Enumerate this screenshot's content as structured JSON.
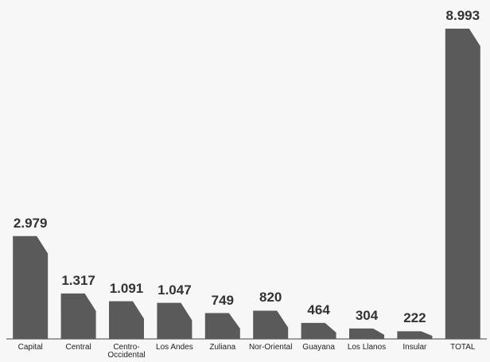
{
  "chart_data": {
    "type": "bar",
    "categories": [
      "Capital",
      "Central",
      "Centro-Occidental",
      "Los Andes",
      "Zuliana",
      "Nor-Oriental",
      "Guayana",
      "Los Llanos",
      "Insular",
      "TOTAL"
    ],
    "values": [
      2979,
      1317,
      1091,
      1047,
      749,
      820,
      464,
      304,
      222,
      8993
    ],
    "value_labels": [
      "2.979",
      "1.317",
      "1.091",
      "1.047",
      "749",
      "820",
      "464",
      "304",
      "222",
      "8.993"
    ],
    "color": "#5a5a5a"
  }
}
